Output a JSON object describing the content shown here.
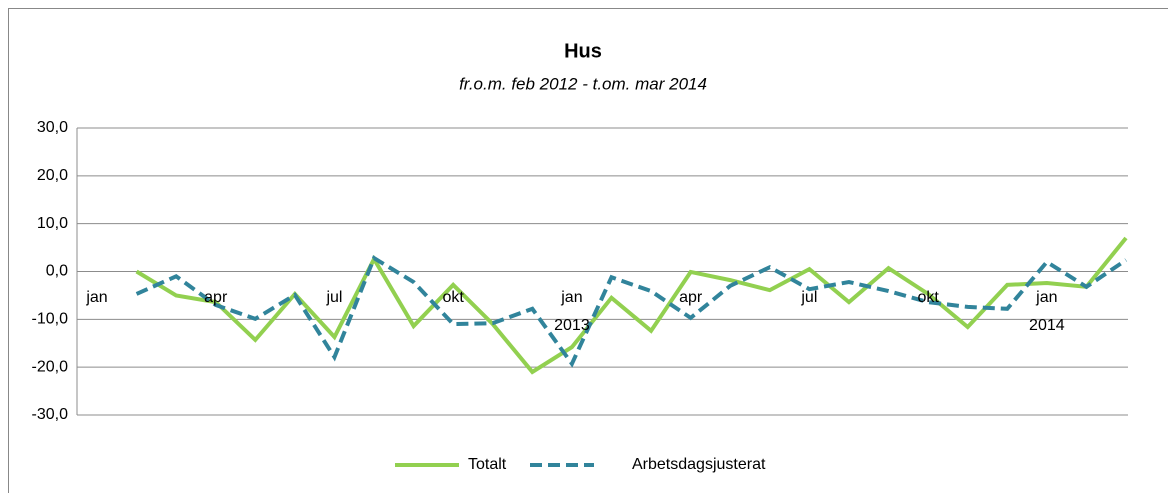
{
  "chart_data": {
    "type": "line",
    "title": "Hus",
    "subtitle": "fr.o.m. feb 2012 - t.om. mar 2014",
    "categories": [
      "jan",
      null,
      null,
      "apr",
      null,
      null,
      "jul",
      null,
      null,
      "okt",
      null,
      null,
      "jan 2013",
      null,
      null,
      "apr",
      null,
      null,
      "jul",
      null,
      null,
      "okt",
      null,
      null,
      "jan 2014",
      null,
      null
    ],
    "series": [
      {
        "name": "Totalt",
        "color": "#92d050",
        "dash": false,
        "values": [
          null,
          0.0,
          -5.0,
          -6.4,
          -14.3,
          -4.7,
          -13.7,
          2.6,
          -11.4,
          -2.8,
          -11.0,
          -21.0,
          -15.8,
          -5.5,
          -12.4,
          -0.1,
          -1.8,
          -3.9,
          0.5,
          -6.4,
          0.7,
          -4.7,
          -11.6,
          -2.8,
          -2.4,
          -3.2,
          7.0
        ]
      },
      {
        "name": "Arbetsdagsjusterat",
        "color": "#31849b",
        "dash": true,
        "values": [
          null,
          -4.7,
          -1.0,
          -7.0,
          -9.9,
          -4.9,
          -17.9,
          2.8,
          -2.2,
          -11.0,
          -10.8,
          -7.8,
          -19.3,
          -1.2,
          -4.1,
          -9.7,
          -3.0,
          0.9,
          -3.7,
          -2.2,
          -4.1,
          -6.4,
          -7.4,
          -7.8,
          2.0,
          -3.2,
          2.4
        ]
      }
    ],
    "ylim": [
      -30,
      30
    ],
    "yticks": [
      {
        "value": -30,
        "label": "-30,0"
      },
      {
        "value": -20,
        "label": "-20,0"
      },
      {
        "value": -10,
        "label": "-10,0"
      },
      {
        "value": 0,
        "label": "0,0"
      },
      {
        "value": 10,
        "label": "10,0"
      },
      {
        "value": 20,
        "label": "20,0"
      },
      {
        "value": 30,
        "label": "30,0"
      }
    ],
    "grid": true,
    "legend": "bottom"
  }
}
